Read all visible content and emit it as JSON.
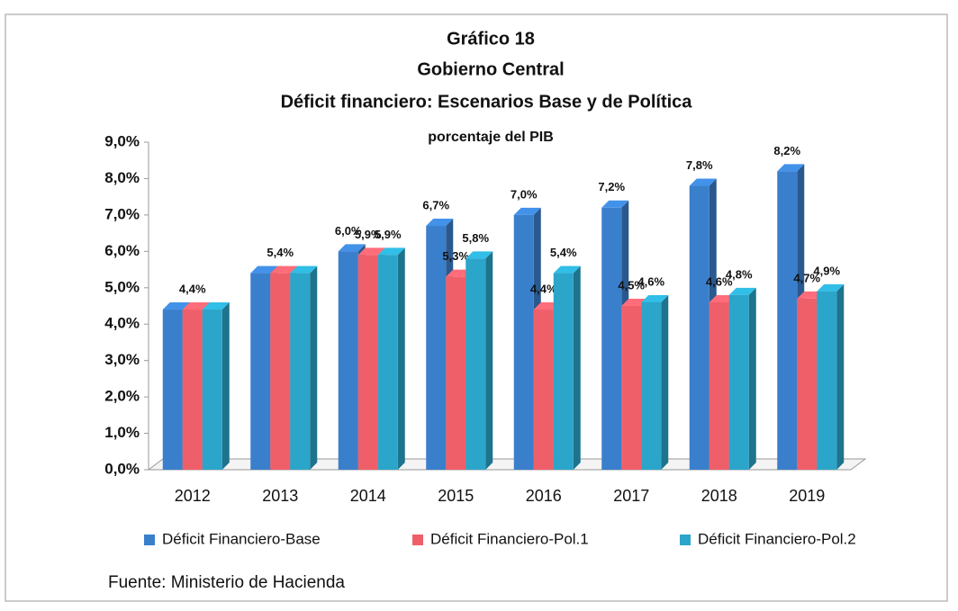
{
  "chart_data": {
    "type": "bar",
    "title": [
      "Gráfico 18",
      "Gobierno Central",
      "Déficit financiero: Escenarios Base y de Política"
    ],
    "subtitle": "porcentaje del PIB",
    "categories": [
      "2012",
      "2013",
      "2014",
      "2015",
      "2016",
      "2017",
      "2018",
      "2019"
    ],
    "series": [
      {
        "name": "Déficit Financiero-Base",
        "color": "#3a7fcb",
        "values": [
          4.4,
          5.4,
          6.0,
          6.7,
          7.0,
          7.2,
          7.8,
          8.2
        ],
        "value_labels": [
          "4,4%",
          "5,4%",
          "6,0%",
          "6,7%",
          "7,0%",
          "7,2%",
          "7,8%",
          "8,2%"
        ]
      },
      {
        "name": "Déficit Financiero-Pol.1",
        "color": "#ef5f6a",
        "values": [
          4.4,
          5.4,
          5.9,
          5.3,
          4.4,
          4.5,
          4.6,
          4.7
        ],
        "value_labels": [
          null,
          null,
          "5,9%",
          "5,3%",
          "4,4%",
          "4,5%",
          "4,6%",
          "4,7%"
        ]
      },
      {
        "name": "Déficit Financiero-Pol.2",
        "color": "#2ba5c9",
        "values": [
          4.4,
          5.4,
          5.9,
          5.8,
          5.4,
          4.6,
          4.8,
          4.9
        ],
        "value_labels": [
          null,
          null,
          "5,9%",
          "5,8%",
          "5,4%",
          "4,6%",
          "4,8%",
          "4,9%"
        ]
      }
    ],
    "ylim": [
      0,
      9
    ],
    "yticks": [
      {
        "value": 0,
        "label": "0,0%"
      },
      {
        "value": 1,
        "label": "1,0%"
      },
      {
        "value": 2,
        "label": "2,0%"
      },
      {
        "value": 3,
        "label": "3,0%"
      },
      {
        "value": 4,
        "label": "4,0%"
      },
      {
        "value": 5,
        "label": "5,0%"
      },
      {
        "value": 6,
        "label": "6,0%"
      },
      {
        "value": 7,
        "label": "7,0%"
      },
      {
        "value": 8,
        "label": "8,0%"
      },
      {
        "value": 9,
        "label": "9,0%"
      }
    ],
    "grid": false,
    "legend": "bottom",
    "source": "Fuente: Ministerio de Hacienda"
  }
}
